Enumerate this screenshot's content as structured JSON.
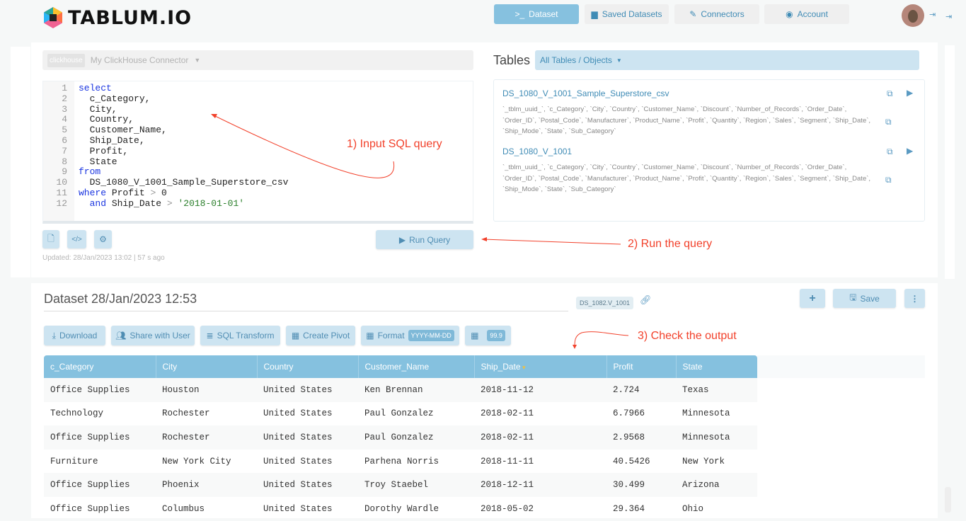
{
  "brand": {
    "name": "TABLUM.IO"
  },
  "nav": [
    {
      "label": "Dataset",
      "icon": "terminal-icon",
      "active": true
    },
    {
      "label": "Saved Datasets",
      "icon": "archive-icon"
    },
    {
      "label": "Connectors",
      "icon": "plug-icon"
    },
    {
      "label": "Account",
      "icon": "user-circle-icon"
    }
  ],
  "connector": {
    "tag": "clickhouse",
    "name": "My ClickHouse Connector"
  },
  "editor": {
    "lines": [
      [
        {
          "t": "select",
          "c": "kw"
        }
      ],
      [
        {
          "t": "  c_Category,"
        }
      ],
      [
        {
          "t": "  City,"
        }
      ],
      [
        {
          "t": "  Country,"
        }
      ],
      [
        {
          "t": "  Customer_Name,"
        }
      ],
      [
        {
          "t": "  Ship_Date,"
        }
      ],
      [
        {
          "t": "  Profit,"
        }
      ],
      [
        {
          "t": "  State"
        }
      ],
      [
        {
          "t": "from",
          "c": "kw"
        }
      ],
      [
        {
          "t": "  DS_1080_V_1001_Sample_Superstore_csv"
        }
      ],
      [
        {
          "t": "where",
          "c": "kw"
        },
        {
          "t": " Profit "
        },
        {
          "t": ">",
          "c": "op"
        },
        {
          "t": " 0"
        }
      ],
      [
        {
          "t": "  "
        },
        {
          "t": "and",
          "c": "kw"
        },
        {
          "t": " Ship_Date "
        },
        {
          "t": ">",
          "c": "op"
        },
        {
          "t": " "
        },
        {
          "t": "'2018-01-01'",
          "c": "str"
        }
      ]
    ]
  },
  "run_query": "Run Query",
  "updated": "Updated: 28/Jan/2023 13:02 | 57 s ago",
  "tables": {
    "title": "Tables",
    "filter": "All Tables / Objects",
    "items": [
      {
        "name": "DS_1080_V_1001_Sample_Superstore_csv",
        "columns": "`_tblm_uuid_`, `c_Category`, `City`, `Country`, `Customer_Name`, `Discount`, `Number_of_Records`, `Order_Date`, `Order_ID`, `Postal_Code`, `Manufacturer`, `Product_Name`, `Profit`, `Quantity`, `Region`, `Sales`, `Segment`, `Ship_Date`, `Ship_Mode`, `State`, `Sub_Category`"
      },
      {
        "name": "DS_1080_V_1001",
        "columns": "`_tblm_uuid_`, `c_Category`, `City`, `Country`, `Customer_Name`, `Discount`, `Number_of_Records`, `Order_Date`, `Order_ID`, `Postal_Code`, `Manufacturer`, `Product_Name`, `Profit`, `Quantity`, `Region`, `Sales`, `Segment`, `Ship_Date`, `Ship_Mode`, `State`, `Sub_Category`"
      }
    ]
  },
  "dataset": {
    "title": "Dataset 28/Jan/2023 12:53",
    "id": "DS_1082.V_1001",
    "save": "Save",
    "actions": {
      "download": "Download",
      "share": "Share with User",
      "sql_transform": "SQL Transform",
      "pivot": "Create Pivot",
      "format": "Format",
      "format_value": "YYYY-MM-DD",
      "decimals": "99.9"
    }
  },
  "annotations": {
    "a1": "1) Input SQL query",
    "a2": "2) Run the query",
    "a3": "3) Check the output"
  },
  "grid": {
    "columns": [
      "c_Category",
      "City",
      "Country",
      "Customer_Name",
      "Ship_Date",
      "Profit",
      "State"
    ],
    "sorted_column": "Ship_Date",
    "rows": [
      [
        "Office Supplies",
        "Houston",
        "United States",
        "Ken Brennan",
        "2018-11-12",
        "2.724",
        "Texas"
      ],
      [
        "Technology",
        "Rochester",
        "United States",
        "Paul Gonzalez",
        "2018-02-11",
        "6.7966",
        "Minnesota"
      ],
      [
        "Office Supplies",
        "Rochester",
        "United States",
        "Paul Gonzalez",
        "2018-02-11",
        "2.9568",
        "Minnesota"
      ],
      [
        "Furniture",
        "New York City",
        "United States",
        "Parhena Norris",
        "2018-11-11",
        "40.5426",
        "New York"
      ],
      [
        "Office Supplies",
        "Phoenix",
        "United States",
        "Troy Staebel",
        "2018-12-11",
        "30.499",
        "Arizona"
      ],
      [
        "Office Supplies",
        "Columbus",
        "United States",
        "Dorothy Wardle",
        "2018-05-02",
        "29.364",
        "Ohio"
      ]
    ]
  },
  "colors": {
    "accent": "#86c1df",
    "button": "#cde4f1",
    "annotation": "#f2412b"
  }
}
